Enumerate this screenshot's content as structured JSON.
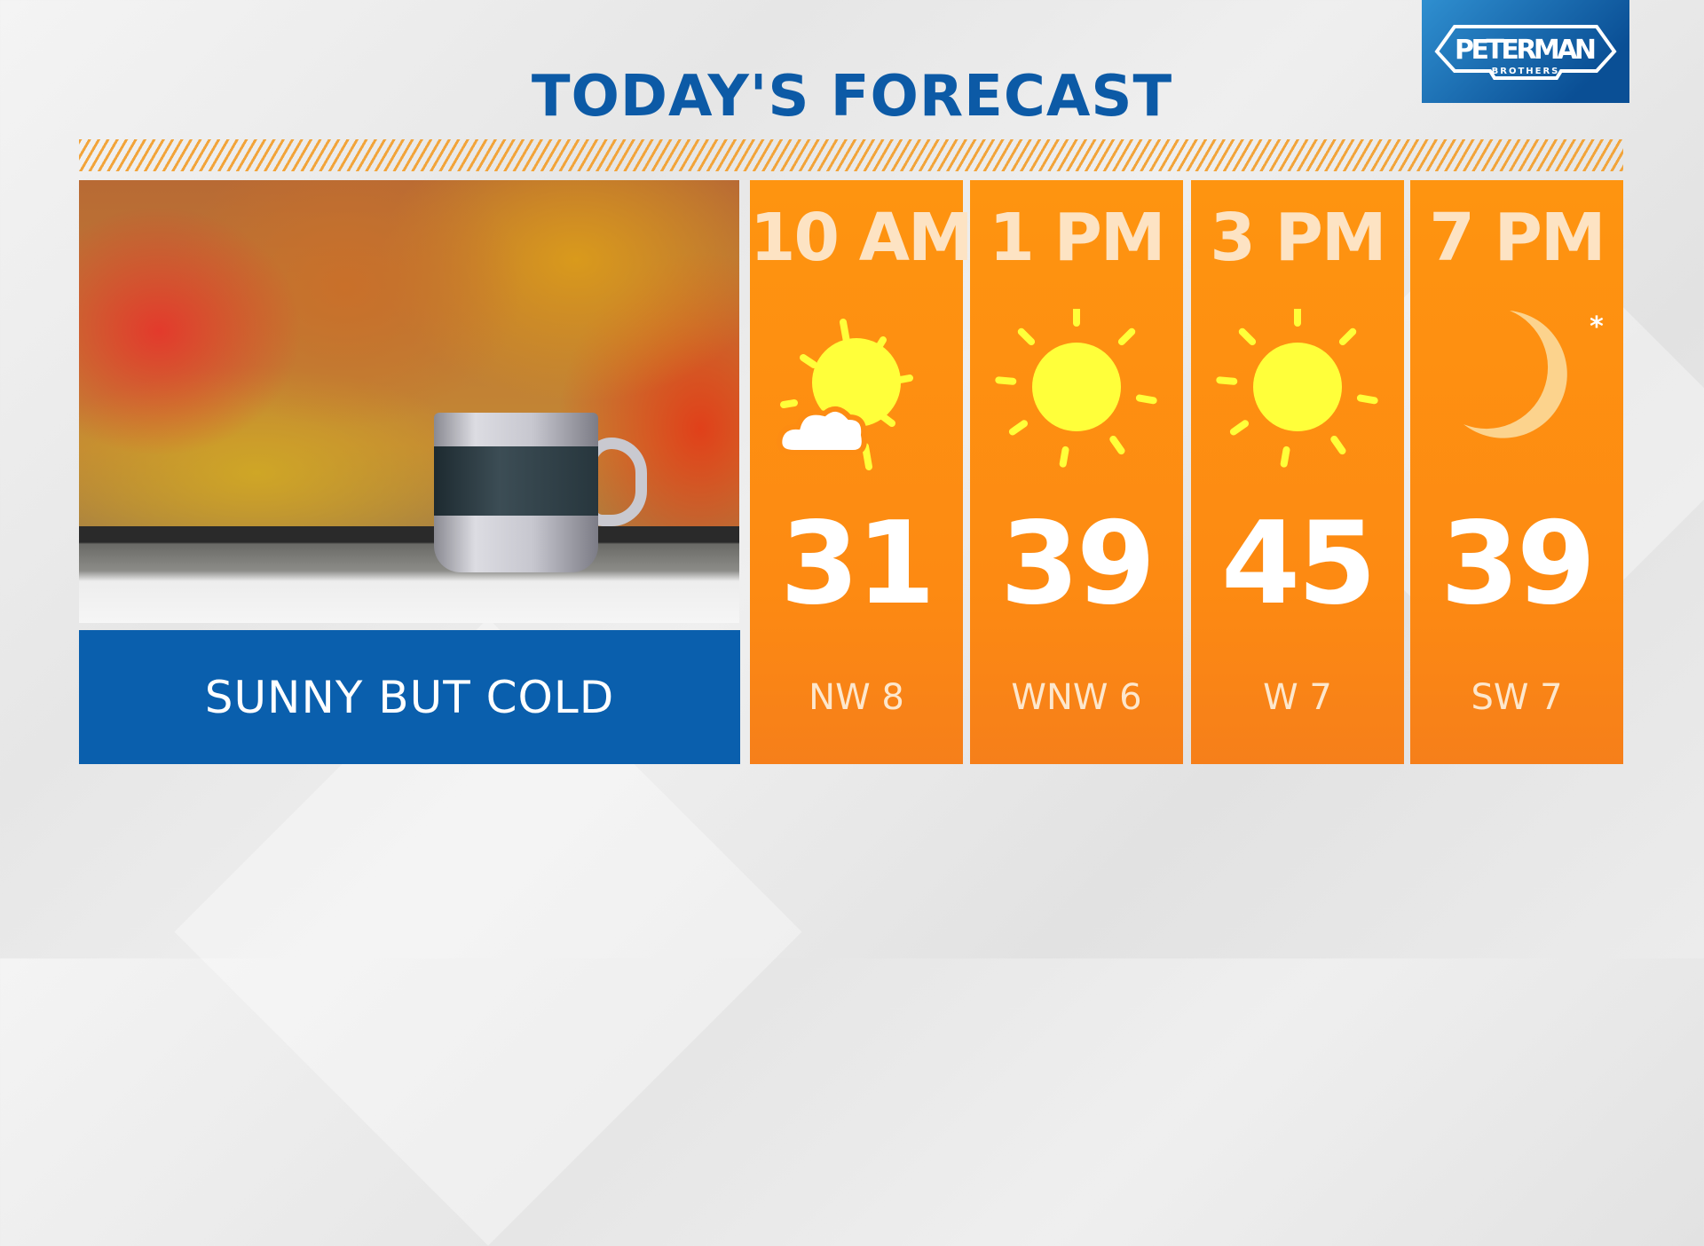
{
  "title": "TODAY'S FORECAST",
  "logo": {
    "name": "PETERMAN",
    "sub": "BROTHERS"
  },
  "caption": "SUNNY BUT COLD",
  "colors": {
    "brand_blue": "#0a5fad",
    "panel_orange": "#fd8c12",
    "sun": "#ffff3a",
    "moon": "#fcd38d"
  },
  "periods": [
    {
      "time": "10 AM",
      "icon": "partly-sunny-icon",
      "temp": "31",
      "wind": "NW 8"
    },
    {
      "time": "1 PM",
      "icon": "sun-icon",
      "temp": "39",
      "wind": "WNW 6"
    },
    {
      "time": "3 PM",
      "icon": "sun-icon",
      "temp": "45",
      "wind": "W 7"
    },
    {
      "time": "7 PM",
      "icon": "moon-icon",
      "temp": "39",
      "wind": "SW 7"
    }
  ]
}
